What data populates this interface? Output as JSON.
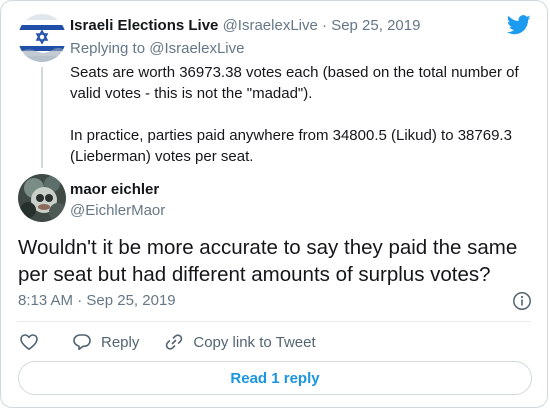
{
  "parent_tweet": {
    "display_name": "Israeli Elections Live",
    "handle": "@IsraelexLive",
    "separator": "·",
    "date": "Sep 25, 2019",
    "replying_label": "Replying to",
    "replying_handle": "@IsraelexLive",
    "paragraphs": [
      "Seats are worth 36973.38 votes each (based on the total number of valid votes - this is not the \"madad\").",
      "In practice, parties paid anywhere from 34800.5 (Likud) to 38769.3 (Lieberman) votes per seat."
    ]
  },
  "reply_tweet": {
    "display_name": "maor eichler",
    "handle": "@EichlerMaor",
    "text": "Wouldn't it be more accurate to say they paid the same per seat but had different amounts of surplus votes?",
    "time": "8:13 AM",
    "separator": "·",
    "date": "Sep 25, 2019"
  },
  "actions": {
    "reply_label": "Reply",
    "copy_link_label": "Copy link to Tweet"
  },
  "read_replies_label": "Read 1 reply",
  "colors": {
    "accent": "#1d9bf0",
    "text": "#14171a",
    "muted": "#657786",
    "border": "#cfd9de"
  }
}
